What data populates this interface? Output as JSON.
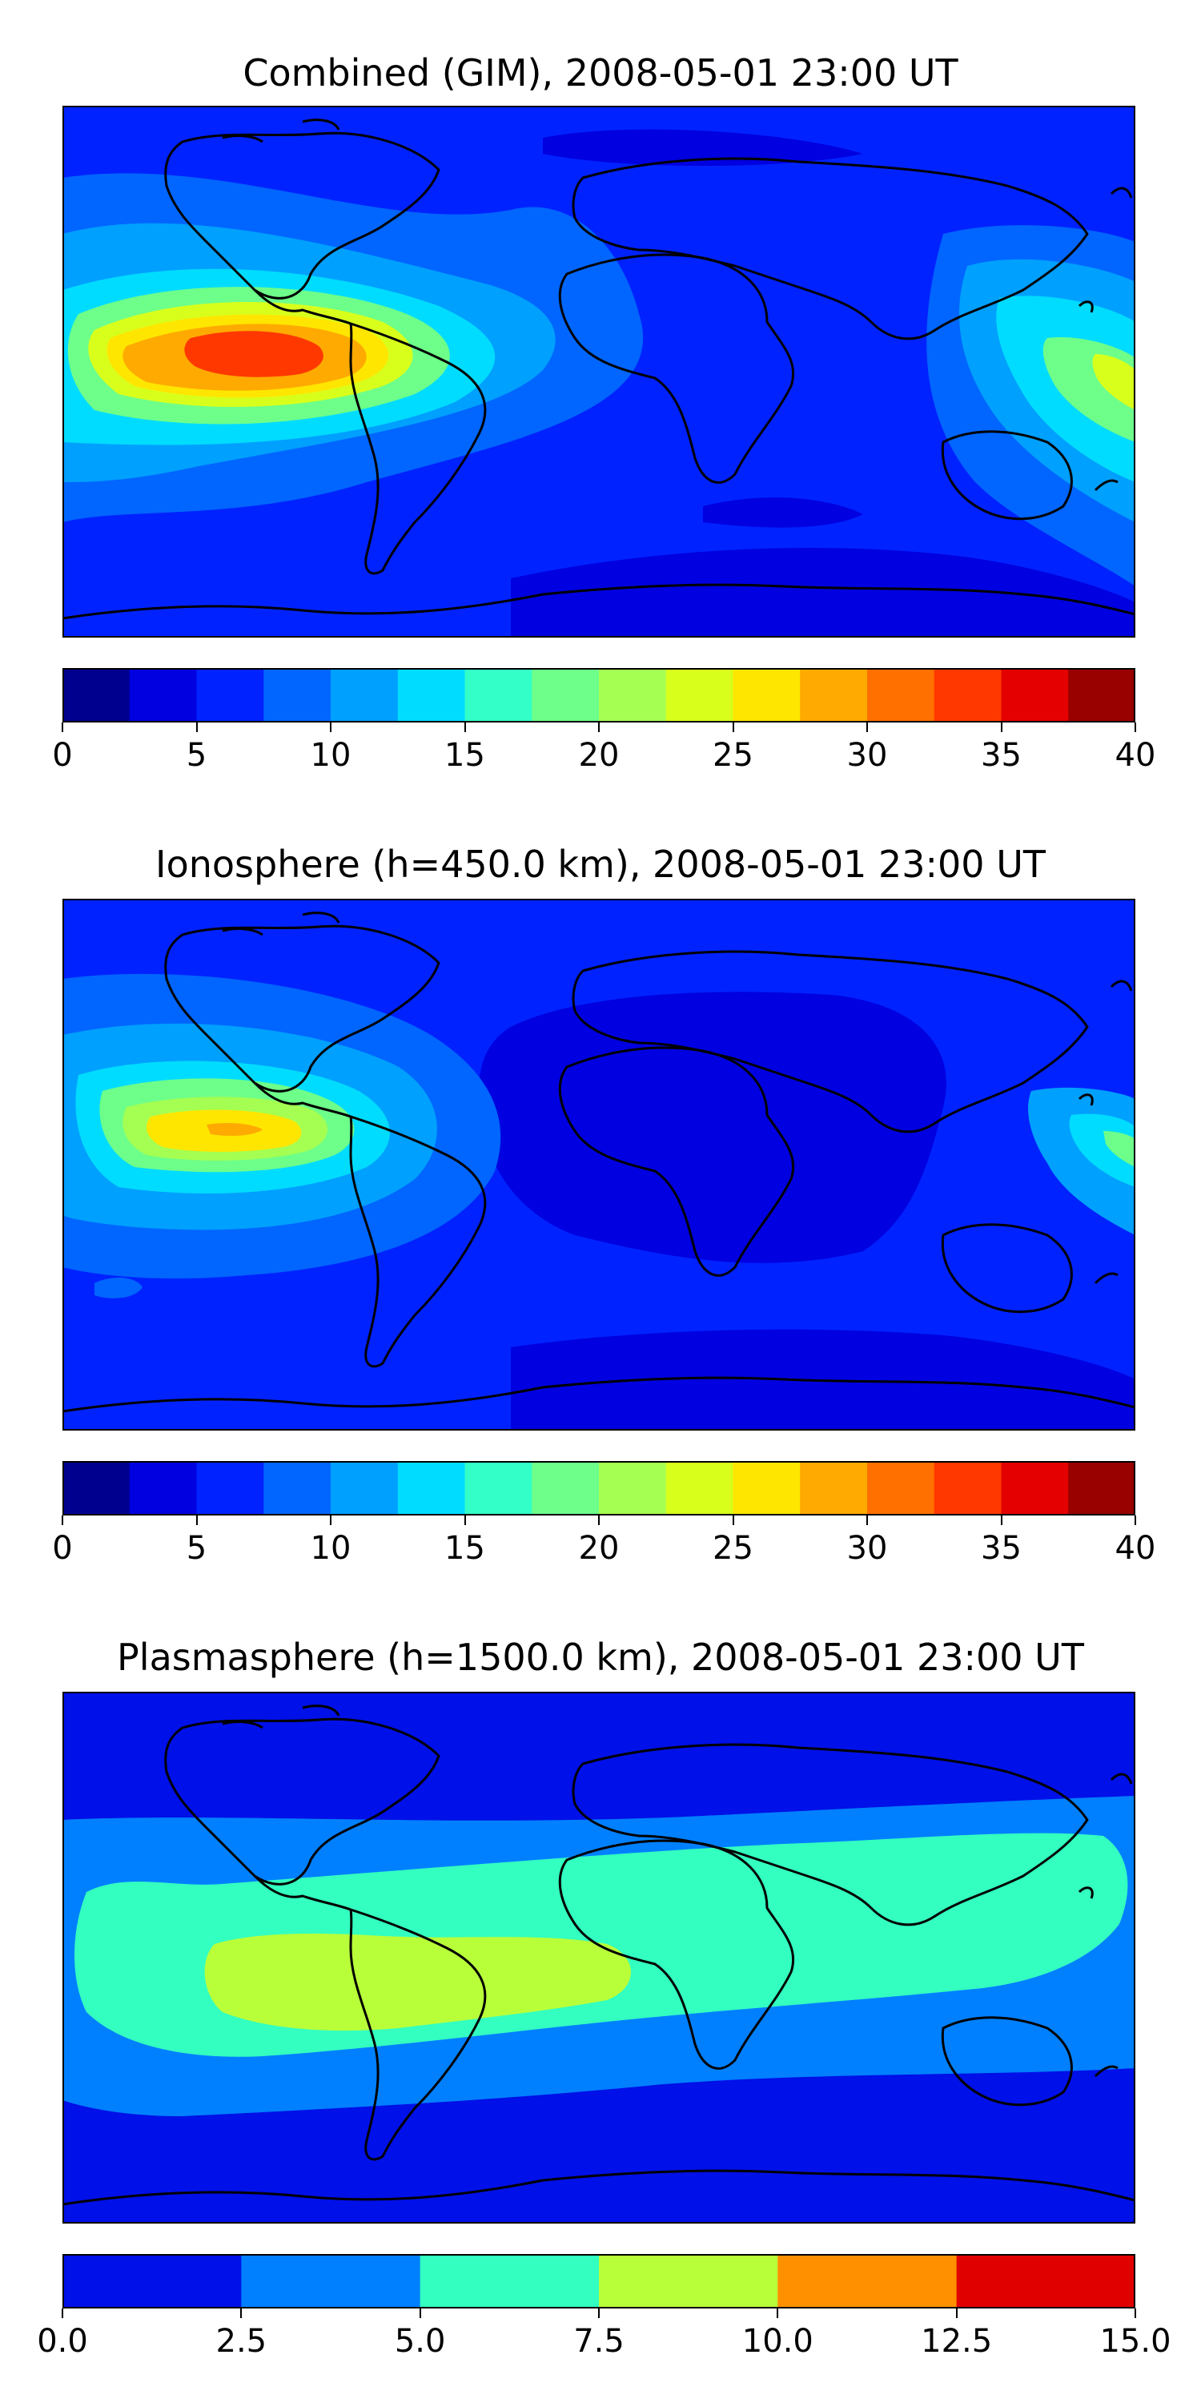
{
  "panels": [
    {
      "title": "Combined (GIM), 2008-05-01 23:00 UT",
      "colorbar": {
        "min": 0,
        "max": 40,
        "ticks": [
          "0",
          "5",
          "10",
          "15",
          "20",
          "25",
          "30",
          "35",
          "40"
        ],
        "colors": [
          "#00008f",
          "#0000e0",
          "#0022ff",
          "#0066ff",
          "#00a0ff",
          "#00dcff",
          "#33ffc8",
          "#6dff8a",
          "#a4ff52",
          "#d8ff1c",
          "#ffe600",
          "#ffaa00",
          "#ff7000",
          "#ff3800",
          "#e40000",
          "#990000"
        ]
      }
    },
    {
      "title": "Ionosphere  (h=450.0 km), 2008-05-01 23:00 UT",
      "colorbar": {
        "min": 0,
        "max": 40,
        "ticks": [
          "0",
          "5",
          "10",
          "15",
          "20",
          "25",
          "30",
          "35",
          "40"
        ],
        "colors": [
          "#00008f",
          "#0000e0",
          "#0022ff",
          "#0066ff",
          "#00a0ff",
          "#00dcff",
          "#33ffc8",
          "#6dff8a",
          "#a4ff52",
          "#d8ff1c",
          "#ffe600",
          "#ffaa00",
          "#ff7000",
          "#ff3800",
          "#e40000",
          "#990000"
        ]
      }
    },
    {
      "title": "Plasmasphere (h=1500.0 km), 2008-05-01 23:00 UT",
      "colorbar": {
        "min": 0,
        "max": 15,
        "ticks": [
          "0.0",
          "2.5",
          "5.0",
          "7.5",
          "10.0",
          "12.5",
          "15.0"
        ],
        "colors": [
          "#0010e8",
          "#0080ff",
          "#33ffc0",
          "#b8ff3a",
          "#ff9000",
          "#e00000"
        ]
      }
    }
  ]
}
